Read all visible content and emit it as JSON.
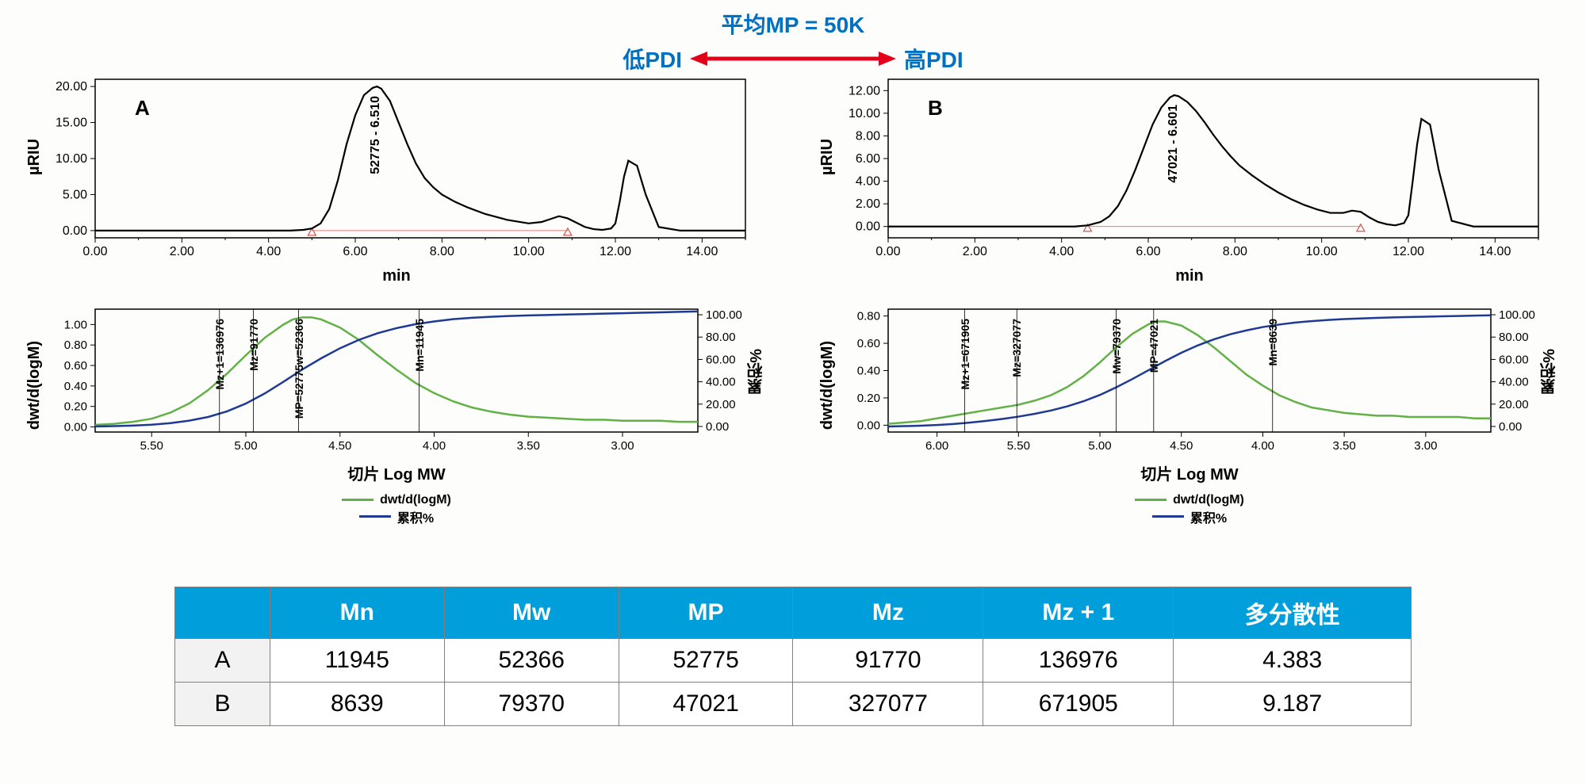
{
  "header": {
    "title_top": "平均MP = 50K",
    "left_label": "低PDI",
    "right_label": "高PDI",
    "arrow_color": "#e2001a",
    "label_color": "#0070c0"
  },
  "colors": {
    "chromato_line": "#000000",
    "dist_green": "#62b146",
    "dist_blue": "#1f3a93",
    "grid": "#cccccc",
    "border": "#000000",
    "marker_red": "#d9544d"
  },
  "chartA_chromato": {
    "type": "line",
    "panel_label": "A",
    "ylabel": "µRIU",
    "xlabel": "min",
    "peak_label": "52775 - 6.510",
    "xlim": [
      0,
      15
    ],
    "xtick_step": 2.0,
    "ylim": [
      -1,
      21
    ],
    "yticks": [
      0.0,
      5.0,
      10.0,
      15.0,
      20.0
    ],
    "line_color": "#000000",
    "line_width": 2.2,
    "marker_x": [
      5.0,
      10.9
    ],
    "x": [
      0,
      0.5,
      1,
      1.5,
      2,
      2.5,
      3,
      3.5,
      4,
      4.5,
      4.8,
      5,
      5.2,
      5.4,
      5.6,
      5.8,
      6,
      6.2,
      6.4,
      6.5,
      6.6,
      6.8,
      7,
      7.2,
      7.4,
      7.6,
      7.8,
      8,
      8.3,
      8.6,
      9,
      9.5,
      10,
      10.3,
      10.5,
      10.7,
      10.9,
      11.1,
      11.3,
      11.5,
      11.7,
      11.9,
      12,
      12.1,
      12.2,
      12.3,
      12.5,
      12.7,
      13,
      13.5,
      14,
      14.5,
      15
    ],
    "y": [
      0,
      0,
      0,
      0,
      0,
      0,
      0,
      0,
      0,
      0,
      0.1,
      0.3,
      1,
      3,
      7,
      12,
      16,
      18.8,
      19.8,
      20,
      19.7,
      18,
      15,
      12,
      9.3,
      7.3,
      6,
      5,
      4,
      3.2,
      2.3,
      1.5,
      1,
      1.2,
      1.6,
      2,
      1.7,
      1.1,
      0.5,
      0.2,
      0.1,
      0.3,
      1,
      4,
      7.5,
      9.7,
      9,
      5,
      0.5,
      0,
      0,
      0,
      0
    ]
  },
  "chartB_chromato": {
    "type": "line",
    "panel_label": "B",
    "ylabel": "µRIU",
    "xlabel": "min",
    "peak_label": "47021 - 6.601",
    "xlim": [
      0,
      15
    ],
    "xtick_step": 2.0,
    "ylim": [
      -1,
      13
    ],
    "yticks": [
      0.0,
      2.0,
      4.0,
      6.0,
      8.0,
      10.0,
      12.0
    ],
    "line_color": "#000000",
    "line_width": 2.2,
    "marker_x": [
      4.6,
      10.9
    ],
    "x": [
      0,
      0.5,
      1,
      1.5,
      2,
      2.5,
      3,
      3.5,
      4,
      4.3,
      4.6,
      4.9,
      5.1,
      5.3,
      5.5,
      5.7,
      5.9,
      6.1,
      6.3,
      6.5,
      6.6,
      6.7,
      6.9,
      7.1,
      7.3,
      7.5,
      7.7,
      7.9,
      8.1,
      8.4,
      8.7,
      9,
      9.3,
      9.6,
      9.9,
      10.2,
      10.5,
      10.7,
      10.9,
      11.1,
      11.3,
      11.5,
      11.7,
      11.9,
      12,
      12.1,
      12.2,
      12.3,
      12.5,
      12.7,
      13,
      13.5,
      14,
      14.5,
      15
    ],
    "y": [
      0,
      0,
      0,
      0,
      0,
      0,
      0,
      0,
      0,
      0,
      0.1,
      0.4,
      0.9,
      1.8,
      3.2,
      5,
      7,
      9,
      10.5,
      11.4,
      11.6,
      11.5,
      11,
      10.2,
      9.2,
      8.1,
      7.1,
      6.2,
      5.4,
      4.5,
      3.7,
      3,
      2.4,
      1.9,
      1.5,
      1.2,
      1.2,
      1.4,
      1.3,
      0.8,
      0.4,
      0.2,
      0.1,
      0.3,
      1,
      4,
      7.2,
      9.5,
      9,
      5,
      0.5,
      0,
      0,
      0,
      0
    ]
  },
  "chartA_dist": {
    "type": "line_dual",
    "xlabel": "切片 Log MW",
    "ylabel": "dwt/d(logM)",
    "ylabel2": "累积%",
    "legend1": "dwt/d(logM)",
    "legend2": "累积%",
    "xlim": [
      5.8,
      2.6
    ],
    "xticks": [
      5.5,
      5.0,
      4.5,
      4.0,
      3.5,
      3.0
    ],
    "ylim": [
      -0.05,
      1.15
    ],
    "yticks": [
      0.0,
      0.2,
      0.4,
      0.6,
      0.8,
      1.0
    ],
    "ylim2": [
      -5,
      105
    ],
    "yticks2": [
      0.0,
      20.0,
      40.0,
      60.0,
      80.0,
      100.0
    ],
    "annotations": [
      {
        "x": 5.14,
        "label": "Mz+1=136976"
      },
      {
        "x": 4.96,
        "label": "Mz=91770"
      },
      {
        "x": 4.72,
        "label": "MP=52775w=52366"
      },
      {
        "x": 4.08,
        "label": "Mn=11945"
      }
    ],
    "green_x": [
      5.8,
      5.7,
      5.6,
      5.5,
      5.4,
      5.3,
      5.2,
      5.1,
      5.0,
      4.9,
      4.8,
      4.75,
      4.7,
      4.65,
      4.6,
      4.5,
      4.4,
      4.3,
      4.2,
      4.1,
      4.0,
      3.9,
      3.8,
      3.7,
      3.6,
      3.5,
      3.4,
      3.3,
      3.2,
      3.1,
      3.0,
      2.9,
      2.8,
      2.7,
      2.6
    ],
    "green_y": [
      0.02,
      0.03,
      0.05,
      0.08,
      0.14,
      0.23,
      0.36,
      0.52,
      0.7,
      0.87,
      1.0,
      1.05,
      1.07,
      1.07,
      1.05,
      0.97,
      0.85,
      0.7,
      0.56,
      0.43,
      0.33,
      0.25,
      0.19,
      0.15,
      0.12,
      0.1,
      0.09,
      0.08,
      0.07,
      0.07,
      0.06,
      0.06,
      0.06,
      0.05,
      0.05
    ],
    "blue_x": [
      5.8,
      5.7,
      5.6,
      5.5,
      5.4,
      5.3,
      5.2,
      5.1,
      5.0,
      4.9,
      4.8,
      4.7,
      4.6,
      4.5,
      4.4,
      4.3,
      4.2,
      4.1,
      4.0,
      3.9,
      3.8,
      3.7,
      3.6,
      3.5,
      3.4,
      3.3,
      3.2,
      3.1,
      3.0,
      2.9,
      2.8,
      2.7,
      2.6
    ],
    "blue_y": [
      0,
      0.3,
      0.8,
      1.6,
      3.0,
      5.2,
      8.5,
      13.5,
      20.5,
      29.5,
      40,
      51,
      61,
      70,
      77.5,
      83.5,
      88,
      91.5,
      94,
      96,
      97.3,
      98.2,
      98.9,
      99.4,
      99.8,
      100.2,
      100.6,
      101,
      101.4,
      101.8,
      102.2,
      102.6,
      103
    ]
  },
  "chartB_dist": {
    "type": "line_dual",
    "xlabel": "切片 Log MW",
    "ylabel": "dwt/d(logM)",
    "ylabel2": "累积%",
    "legend1": "dwt/d(logM)",
    "legend2": "累积%",
    "xlim": [
      6.3,
      2.6
    ],
    "xticks": [
      6.0,
      5.5,
      5.0,
      4.5,
      4.0,
      3.5,
      3.0
    ],
    "ylim": [
      -0.05,
      0.85
    ],
    "yticks": [
      0.0,
      0.2,
      0.4,
      0.6,
      0.8
    ],
    "ylim2": [
      -5,
      105
    ],
    "yticks2": [
      0.0,
      20.0,
      40.0,
      60.0,
      80.0,
      100.0
    ],
    "annotations": [
      {
        "x": 5.83,
        "label": "Mz+1=671905"
      },
      {
        "x": 5.51,
        "label": "Mz=327077"
      },
      {
        "x": 4.9,
        "label": "Mw=79370"
      },
      {
        "x": 4.67,
        "label": "MP=47021"
      },
      {
        "x": 3.94,
        "label": "Mn=8639"
      }
    ],
    "green_x": [
      6.3,
      6.2,
      6.1,
      6.0,
      5.9,
      5.8,
      5.7,
      5.6,
      5.5,
      5.4,
      5.3,
      5.2,
      5.1,
      5.0,
      4.9,
      4.8,
      4.7,
      4.65,
      4.6,
      4.5,
      4.4,
      4.3,
      4.2,
      4.1,
      4.0,
      3.9,
      3.8,
      3.7,
      3.6,
      3.5,
      3.4,
      3.3,
      3.2,
      3.1,
      3.0,
      2.9,
      2.8,
      2.7,
      2.6
    ],
    "green_y": [
      0.01,
      0.02,
      0.03,
      0.05,
      0.07,
      0.09,
      0.11,
      0.13,
      0.15,
      0.18,
      0.22,
      0.28,
      0.36,
      0.46,
      0.57,
      0.67,
      0.74,
      0.76,
      0.76,
      0.73,
      0.66,
      0.57,
      0.47,
      0.37,
      0.29,
      0.22,
      0.17,
      0.13,
      0.11,
      0.09,
      0.08,
      0.07,
      0.07,
      0.06,
      0.06,
      0.06,
      0.06,
      0.05,
      0.05
    ],
    "blue_x": [
      6.3,
      6.2,
      6.1,
      6.0,
      5.9,
      5.8,
      5.7,
      5.6,
      5.5,
      5.4,
      5.3,
      5.2,
      5.1,
      5.0,
      4.9,
      4.8,
      4.7,
      4.6,
      4.5,
      4.4,
      4.3,
      4.2,
      4.1,
      4.0,
      3.9,
      3.8,
      3.7,
      3.6,
      3.5,
      3.4,
      3.3,
      3.2,
      3.1,
      3.0,
      2.9,
      2.8,
      2.7,
      2.6
    ],
    "blue_y": [
      0,
      0.3,
      0.7,
      1.3,
      2.2,
      3.4,
      4.9,
      6.7,
      8.8,
      11.3,
      14.3,
      18,
      22.6,
      28.2,
      35,
      42.5,
      50.5,
      58.5,
      66,
      72.5,
      78,
      82.5,
      86,
      89,
      91.2,
      93,
      94.3,
      95.3,
      96.1,
      96.7,
      97.2,
      97.6,
      98,
      98.3,
      98.6,
      98.9,
      99.2,
      99.5
    ]
  },
  "table": {
    "columns": [
      "",
      "Mn",
      "Mw",
      "MP",
      "Mz",
      "Mz + 1",
      "多分散性"
    ],
    "rows": [
      [
        "A",
        "11945",
        "52366",
        "52775",
        "91770",
        "136976",
        "4.383"
      ],
      [
        "B",
        "8639",
        "79370",
        "47021",
        "327077",
        "671905",
        "9.187"
      ]
    ],
    "col_widths": [
      "120px",
      "220px",
      "220px",
      "220px",
      "240px",
      "240px",
      "300px"
    ]
  }
}
